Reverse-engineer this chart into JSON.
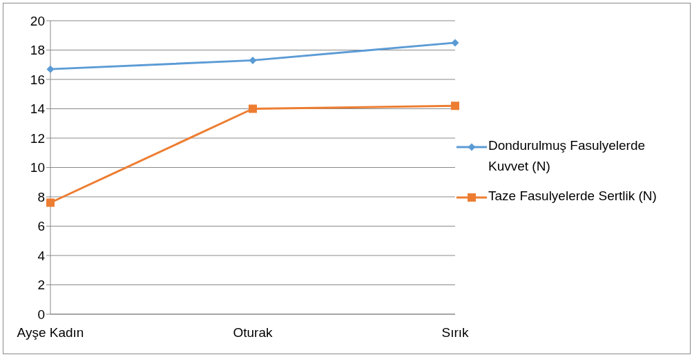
{
  "chart_data": {
    "type": "line",
    "categories": [
      "Ayşe Kadın",
      "Oturak",
      "Sırık"
    ],
    "series": [
      {
        "name": "Dondurulmuş Fasulyelerde Kuvvet (N)",
        "color": "#5b9bd5",
        "marker": "diamond",
        "values": [
          16.7,
          17.3,
          18.5
        ]
      },
      {
        "name": "Taze Fasulyelerde Sertlik (N)",
        "color": "#ed7d31",
        "marker": "square",
        "values": [
          7.6,
          14.0,
          14.2
        ]
      }
    ],
    "ylim": [
      0,
      20
    ],
    "yticks": [
      0,
      2,
      4,
      6,
      8,
      10,
      12,
      14,
      16,
      18,
      20
    ],
    "grid": "y",
    "legend": "right",
    "line_style": "solid"
  }
}
